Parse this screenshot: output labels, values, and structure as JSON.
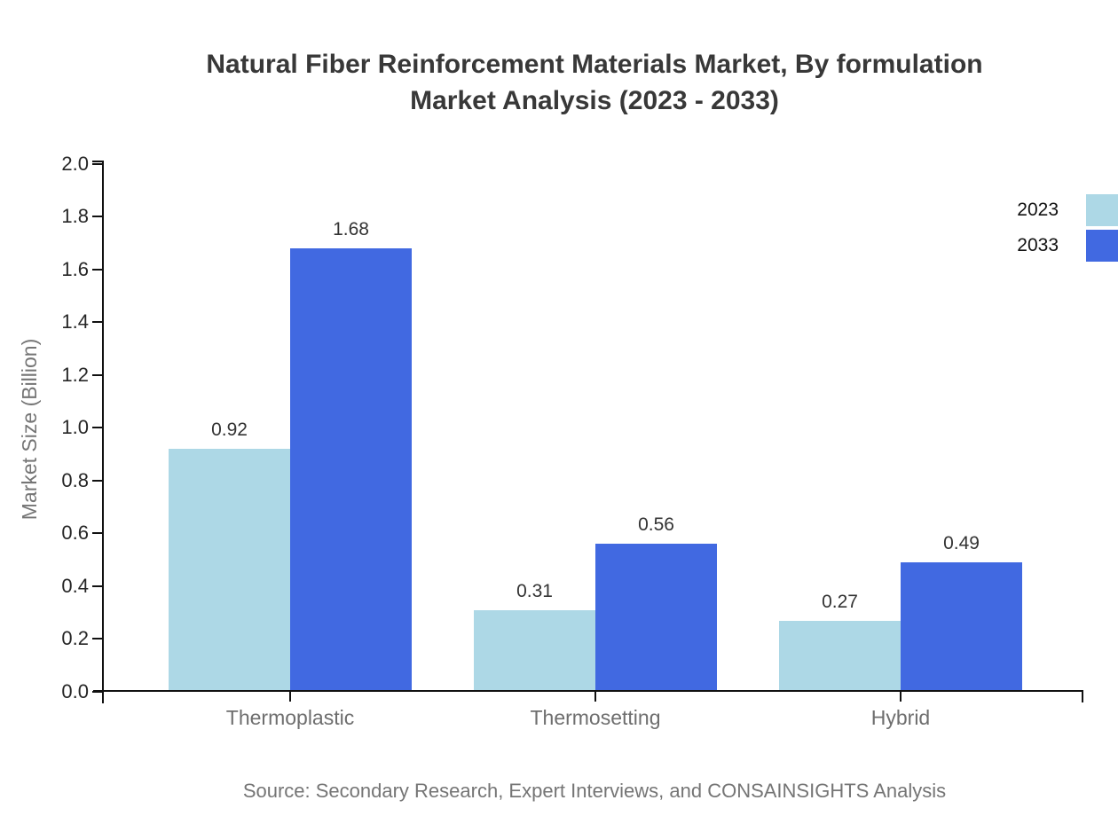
{
  "title": {
    "line1": "Natural Fiber Reinforcement Materials Market, By formulation",
    "line2": "Market Analysis (2023 - 2033)"
  },
  "source_note": "Source: Secondary Research, Expert Interviews, and CONSAINSIGHTS Analysis",
  "chart_data": {
    "type": "bar",
    "title": "Natural Fiber Reinforcement Materials Market, By formulation Market Analysis (2023 - 2033)",
    "categories": [
      "Thermoplastic",
      "Thermosetting",
      "Hybrid"
    ],
    "series": [
      {
        "name": "2023",
        "color": "#ADD8E6",
        "values": [
          0.92,
          0.31,
          0.27
        ],
        "labels": [
          "0.92",
          "0.31",
          "0.27"
        ]
      },
      {
        "name": "2033",
        "color": "#4169E1",
        "values": [
          1.68,
          0.56,
          0.49
        ],
        "labels": [
          "1.68",
          "0.56",
          "0.49"
        ]
      }
    ],
    "xlabel": "",
    "ylabel": "Market Size (Billion)",
    "ylim": [
      0.0,
      2.0
    ],
    "ytick_step": 0.2,
    "yticks": [
      "2.0",
      "1.8",
      "1.6",
      "1.4",
      "1.2",
      "1.0",
      "0.8",
      "0.6",
      "0.4",
      "0.2",
      "0.0"
    ],
    "grid": false,
    "legend_position": "top-right",
    "bar_value_labels": true
  },
  "colors": {
    "background": "#FFFFFF",
    "title_text": "#383838",
    "tick_label": "#262626",
    "value_label": "#333333",
    "category_label": "#6E6E6E",
    "muted_text": "#757575",
    "axis": "#111111",
    "series_2023": "#ADD8E6",
    "series_2033": "#4169E1"
  }
}
